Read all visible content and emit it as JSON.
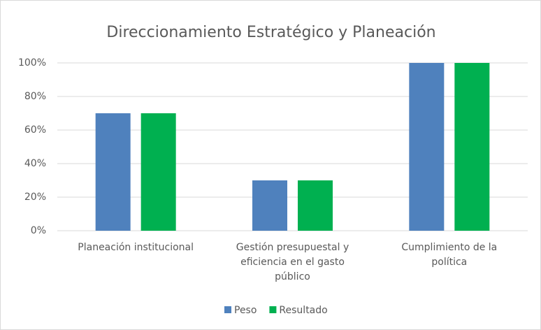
{
  "chart_data": {
    "type": "bar",
    "title": "Direccionamiento Estratégico y Planeación",
    "categories": [
      "Planeación institucional",
      "Gestión presupuestal y eficiencia en el gasto público",
      "Cumplimiento de la política"
    ],
    "series": [
      {
        "name": "Peso",
        "color": "#4f81bd",
        "values": [
          70,
          30,
          100
        ]
      },
      {
        "name": "Resultado",
        "color": "#00b050",
        "values": [
          70,
          30,
          100
        ]
      }
    ],
    "ylim": [
      0,
      100
    ],
    "yticks": [
      {
        "value": 0,
        "label": "0%"
      },
      {
        "value": 20,
        "label": "20%"
      },
      {
        "value": 40,
        "label": "40%"
      },
      {
        "value": 60,
        "label": "60%"
      },
      {
        "value": 80,
        "label": "80%"
      },
      {
        "value": 100,
        "label": "100%"
      }
    ],
    "grid": true,
    "legend": "bottom"
  }
}
